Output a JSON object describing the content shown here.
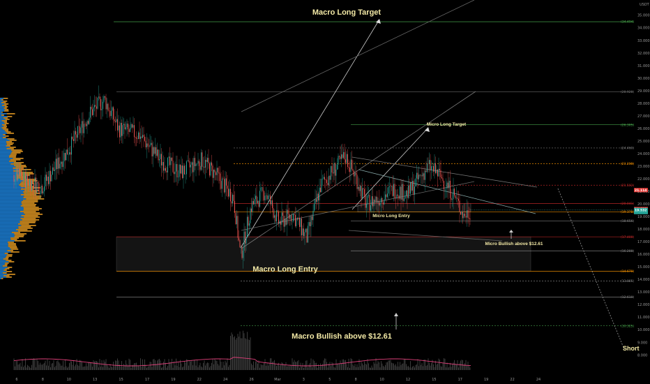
{
  "chart_data": {
    "type": "candlestick",
    "currency": "USDT",
    "y_ticks": [
      "35.000",
      "34.000",
      "33.000",
      "32.000",
      "31.000",
      "30.000",
      "29.000",
      "28.000",
      "27.000",
      "26.000",
      "25.000",
      "24.000",
      "23.000",
      "22.000",
      "21.000",
      "20.000",
      "19.000",
      "18.000",
      "17.000",
      "16.000",
      "15.000",
      "14.000",
      "13.000",
      "12.000",
      "11.000",
      "10.000",
      "9.000",
      "8.000"
    ],
    "x_ticks": [
      "6",
      "8",
      "10",
      "13",
      "15",
      "17",
      "19",
      "22",
      "24",
      "26",
      "Mar",
      "3",
      "5",
      "8",
      "10",
      "12",
      "15",
      "17",
      "19",
      "22",
      "24"
    ],
    "ylim": [
      7.6,
      35.6
    ],
    "levels": [
      {
        "label": "34.494",
        "value": 34.494,
        "color": "#4caf50"
      },
      {
        "label": "28.928",
        "value": 28.928,
        "color": "#777777"
      },
      {
        "label": "26.305",
        "value": 26.305,
        "color": "#4caf50"
      },
      {
        "label": "24.460",
        "value": 24.46,
        "color": "#888888"
      },
      {
        "label": "23.208",
        "value": 23.208,
        "color": "#ff9800"
      },
      {
        "label": "21.502",
        "value": 21.502,
        "color": "#c62828"
      },
      {
        "label": "20.041",
        "value": 20.041,
        "color": "#c62828"
      },
      {
        "label": "19.378",
        "value": 19.378,
        "color": "#ff9800"
      },
      {
        "label": "18.656",
        "value": 18.656,
        "color": "#888888"
      },
      {
        "label": "17.400",
        "value": 17.4,
        "color": "#c62828"
      },
      {
        "label": "16.288",
        "value": 16.288,
        "color": "#888888"
      },
      {
        "label": "14.670",
        "value": 14.67,
        "color": "#ff9800"
      },
      {
        "label": "13.885",
        "value": 13.885,
        "color": "#888888"
      },
      {
        "label": "12.610",
        "value": 12.61,
        "color": "#888888"
      },
      {
        "label": "10.325",
        "value": 10.325,
        "color": "#4caf50"
      }
    ],
    "current_price": {
      "label": "19.532",
      "value": 19.532,
      "color": "#26a69a"
    },
    "price_tags": [
      {
        "label": "21.114",
        "value": 21.114,
        "color": "#e53935"
      },
      {
        "label": "19.606",
        "value": 19.606,
        "color": "#e53935"
      }
    ],
    "annotations": {
      "macro_long_target": "Macro Long Target",
      "micro_long_target": "Micro Long Target",
      "micro_long_entry": "Micro Long Entry",
      "micro_bullish": "Micro Bullish above $12.61",
      "macro_long_entry": "Macro Long Entry",
      "macro_bullish": "Macro Bullish above $12.61",
      "short": "Short"
    },
    "colors": {
      "up": "#26a69a",
      "down": "#ef5350",
      "background": "#000000"
    }
  }
}
